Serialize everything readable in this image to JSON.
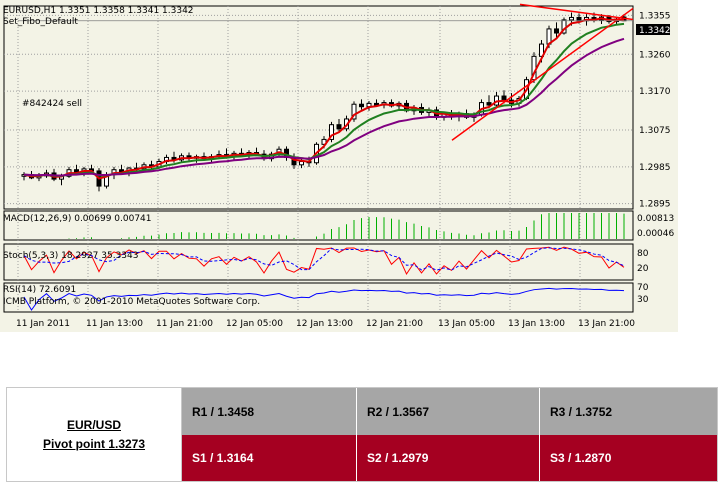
{
  "chart_header": {
    "symbol_line": "EURUSD,H1  1.3351 1.3358 1.3341 1.3342",
    "template": "Set_Fibo_Default",
    "order_label": "#842424 sell",
    "current_price_tag": "1.3342",
    "platform_credit": "ICMB Platform, © 2001-2010 MetaQuotes Software Corp."
  },
  "indicators": {
    "macd_label": "MACD(12,26,9) 0.00699 0.00741",
    "macd_ticks": [
      "0.00813",
      "0.00046"
    ],
    "stoch_label": "Stoch(5,3,3) 18.2927 35.3343",
    "stoch_ticks": [
      "80",
      "20"
    ],
    "rsi_label": "RSI(14) 72.6091",
    "rsi_ticks": [
      "70",
      "30"
    ]
  },
  "chart_data": {
    "type": "candlestick",
    "price_ticks": [
      "1.3355",
      "1.3260",
      "1.3170",
      "1.3075",
      "1.2985",
      "1.2895"
    ],
    "price_tick_values": [
      1.3355,
      1.326,
      1.317,
      1.3075,
      1.2985,
      1.2895
    ],
    "ylim": [
      1.2882,
      1.3378
    ],
    "time_ticks": [
      "11 Jan 2011",
      "11 Jan 13:00",
      "11 Jan 21:00",
      "12 Jan 05:00",
      "12 Jan 13:00",
      "12 Jan 21:00",
      "13 Jan 05:00",
      "13 Jan 13:00",
      "13 Jan 21:00"
    ],
    "grid": true,
    "candles": [
      [
        1.2962,
        1.2972,
        1.2952,
        1.2966
      ],
      [
        1.2966,
        1.2975,
        1.2955,
        1.2958
      ],
      [
        1.2958,
        1.297,
        1.295,
        1.2963
      ],
      [
        1.2963,
        1.2978,
        1.2958,
        1.297
      ],
      [
        1.297,
        1.298,
        1.295,
        1.2955
      ],
      [
        1.2955,
        1.2968,
        1.294,
        1.2962
      ],
      [
        1.2962,
        1.2985,
        1.2958,
        1.2978
      ],
      [
        1.2978,
        1.299,
        1.2965,
        1.297
      ],
      [
        1.297,
        1.2985,
        1.2962,
        1.298
      ],
      [
        1.298,
        1.299,
        1.297,
        1.2975
      ],
      [
        1.2975,
        1.2982,
        1.2925,
        1.2938
      ],
      [
        1.2938,
        1.2972,
        1.2932,
        1.2966
      ],
      [
        1.2966,
        1.2985,
        1.2955,
        1.2978
      ],
      [
        1.2978,
        1.299,
        1.2968,
        1.2972
      ],
      [
        1.2972,
        1.2985,
        1.2962,
        1.2982
      ],
      [
        1.2982,
        1.2995,
        1.2975,
        1.298
      ],
      [
        1.298,
        1.2996,
        1.2972,
        1.299
      ],
      [
        1.299,
        1.3,
        1.298,
        1.2985
      ],
      [
        1.2985,
        1.3005,
        1.298,
        1.2998
      ],
      [
        1.2998,
        1.3015,
        1.2992,
        1.3008
      ],
      [
        1.3008,
        1.3022,
        1.2995,
        1.3002
      ],
      [
        1.3002,
        1.3018,
        1.2995,
        1.3012
      ],
      [
        1.3012,
        1.302,
        1.3,
        1.3006
      ],
      [
        1.3006,
        1.3015,
        1.2995,
        1.301
      ],
      [
        1.301,
        1.302,
        1.3,
        1.3005
      ],
      [
        1.3005,
        1.3016,
        1.2996,
        1.301
      ],
      [
        1.301,
        1.3025,
        1.3004,
        1.3015
      ],
      [
        1.3015,
        1.303,
        1.3005,
        1.301
      ],
      [
        1.301,
        1.3024,
        1.3,
        1.3018
      ],
      [
        1.3018,
        1.303,
        1.301,
        1.3014
      ],
      [
        1.3014,
        1.3026,
        1.3005,
        1.302
      ],
      [
        1.302,
        1.3032,
        1.3012,
        1.3016
      ],
      [
        1.3016,
        1.3026,
        1.3,
        1.3005
      ],
      [
        1.3005,
        1.3022,
        1.2998,
        1.3016
      ],
      [
        1.3016,
        1.3035,
        1.301,
        1.3028
      ],
      [
        1.3028,
        1.3035,
        1.3,
        1.3008
      ],
      [
        1.3008,
        1.3018,
        1.298,
        1.299
      ],
      [
        1.299,
        1.3005,
        1.2982,
        1.2998
      ],
      [
        1.2998,
        1.301,
        1.2985,
        1.2995
      ],
      [
        1.2995,
        1.3045,
        1.299,
        1.304
      ],
      [
        1.304,
        1.306,
        1.303,
        1.3052
      ],
      [
        1.3052,
        1.3095,
        1.3045,
        1.3088
      ],
      [
        1.3088,
        1.3102,
        1.307,
        1.3078
      ],
      [
        1.3078,
        1.311,
        1.3072,
        1.3102
      ],
      [
        1.3102,
        1.3145,
        1.3095,
        1.3138
      ],
      [
        1.3138,
        1.315,
        1.3125,
        1.3132
      ],
      [
        1.3132,
        1.3146,
        1.3122,
        1.314
      ],
      [
        1.314,
        1.315,
        1.3132,
        1.3136
      ],
      [
        1.3136,
        1.3148,
        1.3128,
        1.3142
      ],
      [
        1.3142,
        1.315,
        1.313,
        1.3134
      ],
      [
        1.3134,
        1.3145,
        1.3126,
        1.314
      ],
      [
        1.314,
        1.3148,
        1.3118,
        1.3122
      ],
      [
        1.3122,
        1.3136,
        1.3112,
        1.313
      ],
      [
        1.313,
        1.314,
        1.3112,
        1.3118
      ],
      [
        1.3118,
        1.313,
        1.3105,
        1.3124
      ],
      [
        1.3124,
        1.3132,
        1.31,
        1.3106
      ],
      [
        1.3106,
        1.312,
        1.3098,
        1.3114
      ],
      [
        1.3114,
        1.3124,
        1.31,
        1.3108
      ],
      [
        1.3108,
        1.312,
        1.3096,
        1.3115
      ],
      [
        1.3115,
        1.3125,
        1.3102,
        1.3106
      ],
      [
        1.3106,
        1.3118,
        1.3095,
        1.3112
      ],
      [
        1.3112,
        1.315,
        1.3108,
        1.3142
      ],
      [
        1.3142,
        1.316,
        1.3128,
        1.3136
      ],
      [
        1.3136,
        1.3168,
        1.313,
        1.3158
      ],
      [
        1.3158,
        1.3172,
        1.314,
        1.3148
      ],
      [
        1.3148,
        1.3165,
        1.313,
        1.314
      ],
      [
        1.314,
        1.3158,
        1.3132,
        1.3152
      ],
      [
        1.3152,
        1.3205,
        1.3148,
        1.3198
      ],
      [
        1.3198,
        1.3265,
        1.319,
        1.3255
      ],
      [
        1.3255,
        1.3295,
        1.324,
        1.3285
      ],
      [
        1.3285,
        1.333,
        1.3275,
        1.3322
      ],
      [
        1.3322,
        1.3338,
        1.33,
        1.3312
      ],
      [
        1.3312,
        1.335,
        1.3308,
        1.3344
      ],
      [
        1.3344,
        1.3362,
        1.333,
        1.335
      ],
      [
        1.335,
        1.336,
        1.3335,
        1.3342
      ],
      [
        1.3342,
        1.3358,
        1.333,
        1.335
      ],
      [
        1.335,
        1.3362,
        1.3338,
        1.3344
      ],
      [
        1.3344,
        1.3358,
        1.3334,
        1.3351
      ],
      [
        1.3351,
        1.3356,
        1.3335,
        1.334
      ],
      [
        1.334,
        1.3352,
        1.3332,
        1.3346
      ],
      [
        1.3351,
        1.3358,
        1.3341,
        1.3342
      ]
    ],
    "pivot": {
      "title": "EUR/USD",
      "pivot_point_label": "Pivot point 1.3273",
      "resistance": [
        "R1 / 1.3458",
        "R2 / 1.3567",
        "R3 / 1.3752"
      ],
      "support": [
        "S1 / 1.3164",
        "S2 / 1.2979",
        "S3 / 1.2870"
      ]
    }
  },
  "colors": {
    "background": "#f3f3e6",
    "ma_fast": "#e00000",
    "ma_mid": "#208020",
    "ma_slow": "#800080",
    "trend_line": "#ff0000",
    "macd_hist": "#00b000",
    "stoch_main": "#ff0000",
    "stoch_signal": "#0000ff",
    "rsi": "#0000ff",
    "resistance_row": "#a6a6a6",
    "support_row": "#a50021"
  }
}
